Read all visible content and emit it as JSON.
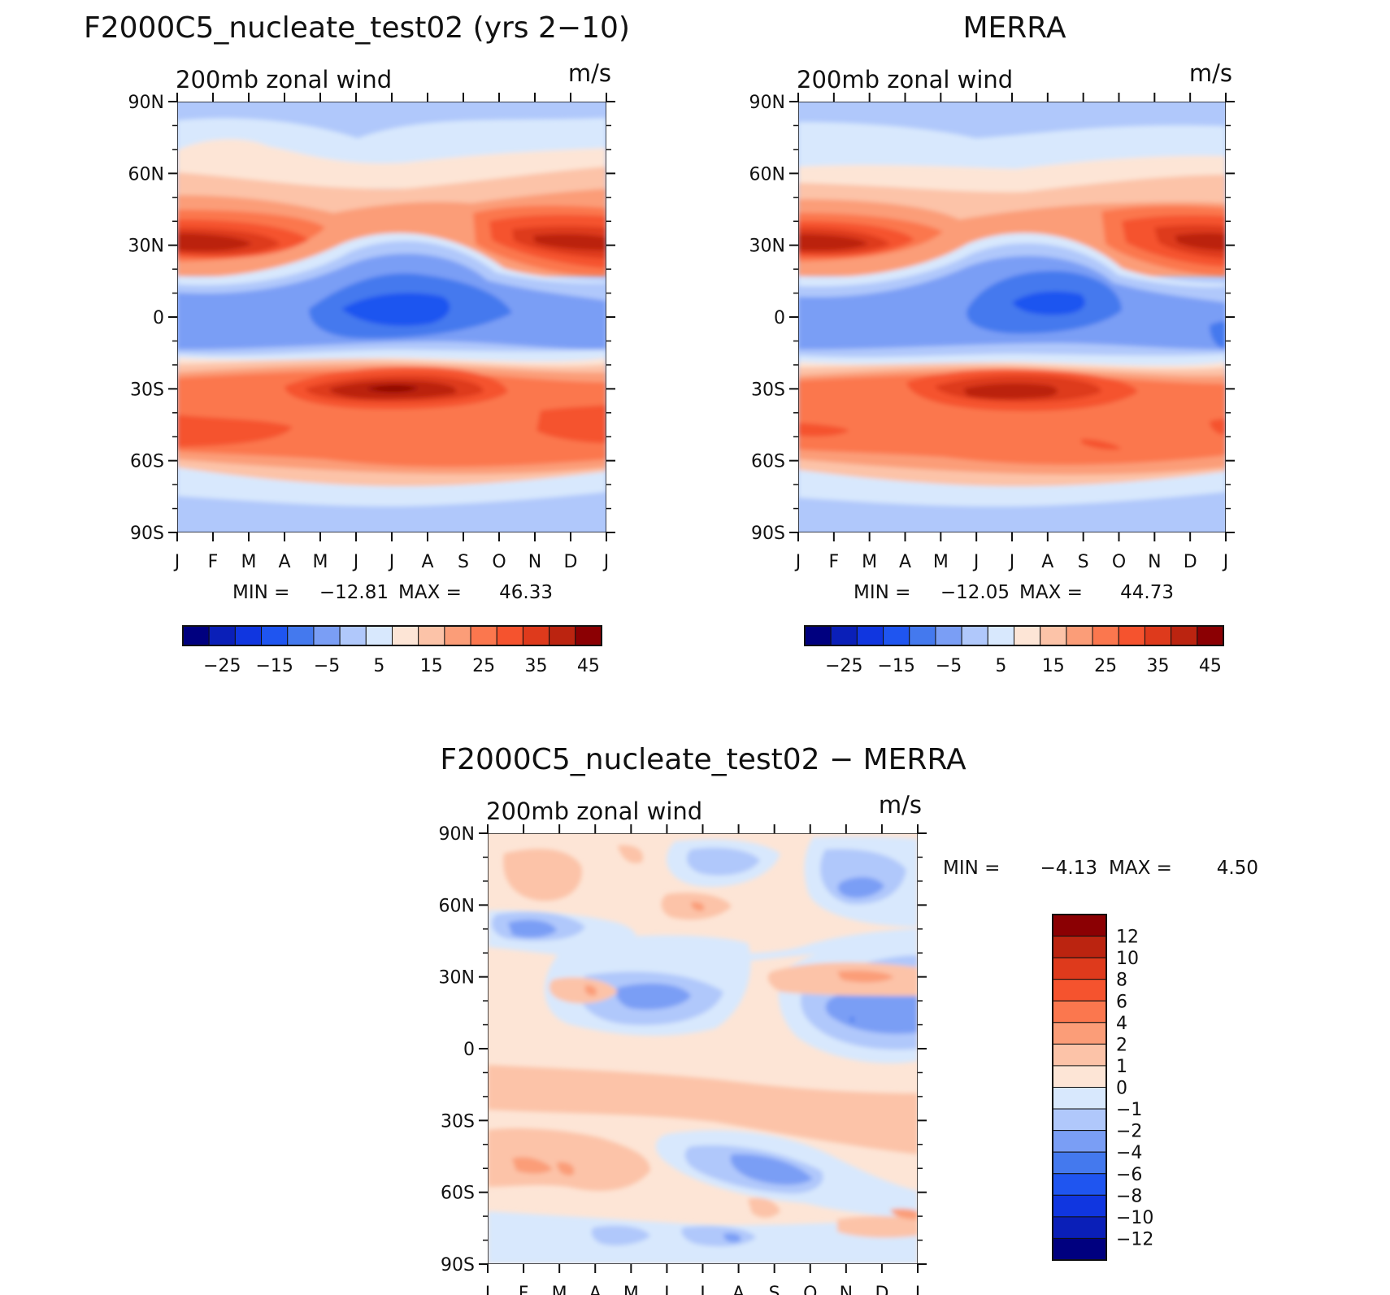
{
  "chart_data": [
    {
      "type": "heatmap",
      "title": "F2000C5_nucleate_test02 (yrs 2−10)",
      "subtitle": "200mb zonal wind",
      "units": "m/s",
      "x_ticks": [
        "J",
        "F",
        "M",
        "A",
        "M",
        "J",
        "J",
        "A",
        "S",
        "O",
        "N",
        "D",
        "J"
      ],
      "y_ticks": [
        "90N",
        "60N",
        "30N",
        "0",
        "30S",
        "60S",
        "90S"
      ],
      "ylim": [
        -90,
        90
      ],
      "min_label": "MIN =",
      "min_value": "−12.81",
      "max_label": "MAX =",
      "max_value": "46.33",
      "colorbar": {
        "orientation": "horizontal",
        "tick_labels": [
          "−25",
          "−15",
          "−5",
          "5",
          "15",
          "25",
          "35",
          "45"
        ],
        "colors": [
          "#00007f",
          "#0a1fb8",
          "#1036e0",
          "#1f55f0",
          "#4479ee",
          "#7a9ef5",
          "#b0c8fb",
          "#d8e8fd",
          "#fde5d6",
          "#fcc3a8",
          "#fb9d78",
          "#fb774e",
          "#f5532e",
          "#de3a1c",
          "#bb2410",
          "#8b0003"
        ]
      },
      "features": [
        {
          "type": "jet",
          "name": "NH subtropical jet",
          "lat": 30,
          "value": 46,
          "month_peak": "Jan"
        },
        {
          "type": "jet",
          "name": "SH subtropical jet",
          "lat": -30,
          "value": 46,
          "month_peak": "Jul"
        },
        {
          "type": "easterly",
          "name": "tropical easterlies",
          "lat": 5,
          "value": -12,
          "month_peak": "Jul"
        }
      ]
    },
    {
      "type": "heatmap",
      "title": "MERRA",
      "subtitle": "200mb zonal wind",
      "units": "m/s",
      "x_ticks": [
        "J",
        "F",
        "M",
        "A",
        "M",
        "J",
        "J",
        "A",
        "S",
        "O",
        "N",
        "D",
        "J"
      ],
      "y_ticks": [
        "90N",
        "60N",
        "30N",
        "0",
        "30S",
        "60S",
        "90S"
      ],
      "ylim": [
        -90,
        90
      ],
      "min_label": "MIN =",
      "min_value": "−12.05",
      "max_label": "MAX =",
      "max_value": "44.73",
      "colorbar": {
        "orientation": "horizontal",
        "tick_labels": [
          "−25",
          "−15",
          "−5",
          "5",
          "15",
          "25",
          "35",
          "45"
        ],
        "colors": [
          "#00007f",
          "#0a1fb8",
          "#1036e0",
          "#1f55f0",
          "#4479ee",
          "#7a9ef5",
          "#b0c8fb",
          "#d8e8fd",
          "#fde5d6",
          "#fcc3a8",
          "#fb9d78",
          "#fb774e",
          "#f5532e",
          "#de3a1c",
          "#bb2410",
          "#8b0003"
        ]
      },
      "features": [
        {
          "type": "jet",
          "name": "NH subtropical jet",
          "lat": 30,
          "value": 44,
          "month_peak": "Jan"
        },
        {
          "type": "jet",
          "name": "SH subtropical jet",
          "lat": -30,
          "value": 40,
          "month_peak": "Jul"
        },
        {
          "type": "easterly",
          "name": "tropical easterlies",
          "lat": 5,
          "value": -12,
          "month_peak": "Jul"
        }
      ]
    },
    {
      "type": "heatmap",
      "title": "F2000C5_nucleate_test02 − MERRA",
      "subtitle": "200mb zonal wind",
      "units": "m/s",
      "x_ticks": [
        "J",
        "F",
        "M",
        "A",
        "M",
        "J",
        "J",
        "A",
        "S",
        "O",
        "N",
        "D",
        "J"
      ],
      "y_ticks": [
        "90N",
        "60N",
        "30N",
        "0",
        "30S",
        "60S",
        "90S"
      ],
      "ylim": [
        -90,
        90
      ],
      "min_label": "MIN =",
      "min_value": "−4.13",
      "max_label": "MAX =",
      "max_value": "4.50",
      "colorbar": {
        "orientation": "vertical",
        "tick_labels": [
          "12",
          "10",
          "8",
          "6",
          "4",
          "2",
          "1",
          "0",
          "−1",
          "−2",
          "−4",
          "−6",
          "−8",
          "−10",
          "−12"
        ],
        "colors": [
          "#8b0003",
          "#bb2410",
          "#de3a1c",
          "#f5532e",
          "#fb774e",
          "#fb9d78",
          "#fcc3a8",
          "#fde5d6",
          "#d8e8fd",
          "#b0c8fb",
          "#7a9ef5",
          "#4479ee",
          "#1f55f0",
          "#1036e0",
          "#0a1fb8",
          "#00007f"
        ]
      }
    }
  ]
}
